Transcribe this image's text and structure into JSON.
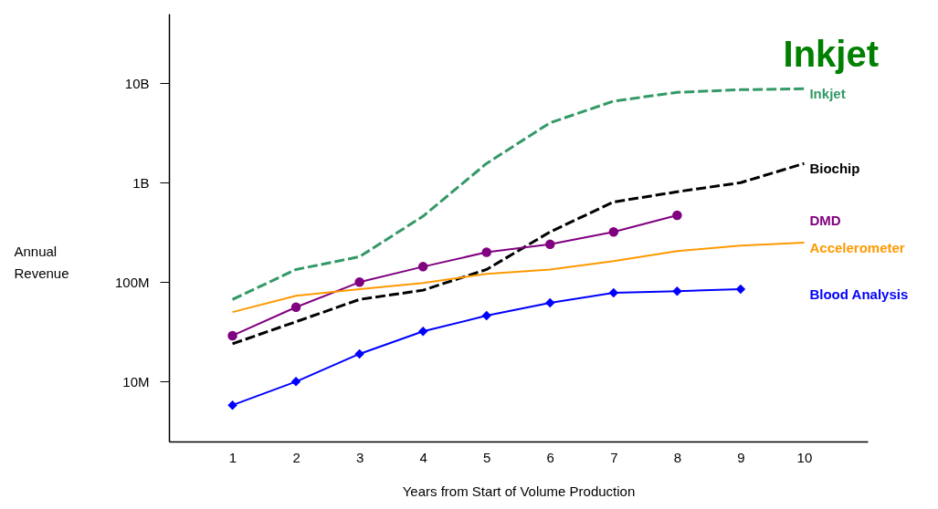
{
  "chart_data": {
    "type": "line",
    "title": "Inkjet",
    "xlabel": "Years from Start of Volume Production",
    "ylabel": "Annual Revenue",
    "x": [
      1,
      2,
      3,
      4,
      5,
      6,
      7,
      8,
      9,
      10
    ],
    "log": true,
    "grid": false,
    "xlim": [
      0,
      11
    ],
    "xticks": [
      1,
      2,
      3,
      4,
      5,
      6,
      7,
      8,
      9,
      10
    ],
    "ylim": [
      2500000,
      50000000000
    ],
    "yticks": [
      {
        "value": 10000000,
        "label": "10M"
      },
      {
        "value": 100000000,
        "label": "100M"
      },
      {
        "value": 1000000000,
        "label": "1B"
      },
      {
        "value": 10000000000,
        "label": "10B"
      }
    ],
    "series": [
      {
        "name": "Inkjet",
        "color": "#339966",
        "line_style": "dashed",
        "marker": "none",
        "values": [
          67000000,
          134000000,
          180000000,
          460000000,
          1560000000,
          4000000000,
          6600000000,
          8100000000,
          8600000000,
          8800000000
        ]
      },
      {
        "name": "Biochip",
        "color": "#000000",
        "line_style": "dashed",
        "marker": "none",
        "values": [
          24000000,
          40000000,
          67000000,
          83000000,
          134000000,
          320000000,
          640000000,
          810000000,
          1000000000,
          1560000000
        ]
      },
      {
        "name": "DMD",
        "color": "#800080",
        "line_style": "solid",
        "marker": "circle",
        "values": [
          29000000,
          56000000,
          100000000,
          143000000,
          200000000,
          240000000,
          320000000,
          470000000,
          null,
          null
        ]
      },
      {
        "name": "Accelerometer",
        "color": "#ff9900",
        "line_style": "solid",
        "marker": "none",
        "values": [
          50000000,
          73000000,
          85000000,
          98000000,
          121000000,
          134000000,
          163000000,
          205000000,
          233000000,
          250000000
        ]
      },
      {
        "name": "Blood Analysis",
        "color": "#0000ff",
        "line_style": "solid",
        "marker": "diamond",
        "values": [
          5800000,
          10000000,
          19000000,
          32000000,
          46000000,
          62000000,
          78000000,
          81000000,
          85000000,
          null
        ]
      }
    ]
  }
}
